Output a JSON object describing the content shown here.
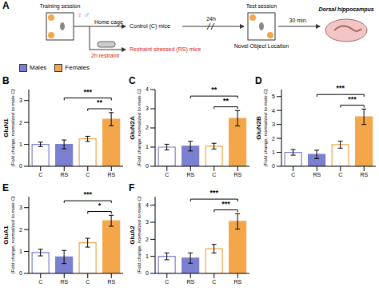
{
  "diagram": {
    "panel_label": "A",
    "training": "Training session",
    "test": "Test session",
    "sexes": [
      "♀",
      "♂"
    ],
    "home_cage": "Home cage",
    "restraint": "2h restraint",
    "control": "Control (C) mice",
    "stressed": "Restraint stressed (RS) mice",
    "delay": "24h",
    "task": "Novel Object Location",
    "wait": "30 min.",
    "tissue": "Dorsal hippocampus"
  },
  "chart_data": [
    {
      "type": "bar",
      "panel_label": "B",
      "ylabel": "GluN1",
      "ylabel_note": "(Fold change, normalized to male C)",
      "legend": "upper left",
      "categories": [
        "C",
        "RS",
        "C",
        "RS"
      ],
      "series": [
        {
          "name": "Males",
          "color": "#7b7fcf",
          "colors": [
            "#ffffff",
            "#7b7fcf",
            null,
            null
          ],
          "values": [
            1.0,
            1.0,
            null,
            null
          ],
          "errors": [
            0.1,
            0.2,
            null,
            null
          ]
        },
        {
          "name": "Females",
          "color": "#f4a64a",
          "colors": [
            null,
            null,
            "#ffffff",
            "#f4a64a"
          ],
          "values": [
            null,
            null,
            1.25,
            2.15
          ],
          "errors": [
            null,
            null,
            0.12,
            0.3
          ]
        }
      ],
      "ylim": [
        0,
        3.5
      ],
      "yticks": [
        0,
        1,
        2,
        3
      ],
      "significance": [
        {
          "from": 2,
          "to": 3,
          "label": "**"
        },
        {
          "from": 1,
          "to": 3,
          "label": "***"
        }
      ]
    },
    {
      "type": "bar",
      "panel_label": "C",
      "ylabel": "GluN2A",
      "ylabel_note": "(Fold change, normalized to male C)",
      "categories": [
        "C",
        "RS",
        "C",
        "RS"
      ],
      "series": [
        {
          "name": "Males",
          "color": "#7b7fcf",
          "colors": [
            "#ffffff",
            "#7b7fcf",
            null,
            null
          ],
          "values": [
            1.0,
            1.05,
            null,
            null
          ],
          "errors": [
            0.15,
            0.25,
            null,
            null
          ]
        },
        {
          "name": "Females",
          "color": "#f4a64a",
          "colors": [
            null,
            null,
            "#ffffff",
            "#f4a64a"
          ],
          "values": [
            null,
            null,
            1.05,
            2.5
          ],
          "errors": [
            null,
            null,
            0.15,
            0.4
          ]
        }
      ],
      "ylim": [
        0,
        4
      ],
      "yticks": [
        0,
        1,
        2,
        3,
        4
      ],
      "significance": [
        {
          "from": 2,
          "to": 3,
          "label": "**"
        },
        {
          "from": 1,
          "to": 3,
          "label": "**"
        }
      ]
    },
    {
      "type": "bar",
      "panel_label": "D",
      "ylabel": "GluN2B",
      "ylabel_note": "(Fold change, normalized to male C)",
      "categories": [
        "C",
        "RS",
        "C",
        "RS"
      ],
      "series": [
        {
          "name": "Males",
          "color": "#7b7fcf",
          "colors": [
            "#ffffff",
            "#7b7fcf",
            null,
            null
          ],
          "values": [
            1.0,
            0.85,
            null,
            null
          ],
          "errors": [
            0.2,
            0.3,
            null,
            null
          ]
        },
        {
          "name": "Females",
          "color": "#f4a64a",
          "colors": [
            null,
            null,
            "#ffffff",
            "#f4a64a"
          ],
          "values": [
            null,
            null,
            1.55,
            3.55
          ],
          "errors": [
            null,
            null,
            0.25,
            0.55
          ]
        }
      ],
      "ylim": [
        0,
        5.5
      ],
      "yticks": [
        0,
        1,
        2,
        3,
        4,
        5
      ],
      "significance": [
        {
          "from": 2,
          "to": 3,
          "label": "***"
        },
        {
          "from": 1,
          "to": 3,
          "label": "***"
        }
      ]
    },
    {
      "type": "bar",
      "panel_label": "E",
      "ylabel": "GluA1",
      "ylabel_note": "(Fold change, normalized to male C)",
      "categories": [
        "C",
        "RS",
        "C",
        "RS"
      ],
      "series": [
        {
          "name": "Males",
          "color": "#7b7fcf",
          "colors": [
            "#ffffff",
            "#7b7fcf",
            null,
            null
          ],
          "values": [
            0.95,
            0.75,
            null,
            null
          ],
          "errors": [
            0.15,
            0.3,
            null,
            null
          ]
        },
        {
          "name": "Females",
          "color": "#f4a64a",
          "colors": [
            null,
            null,
            "#ffffff",
            "#f4a64a"
          ],
          "values": [
            null,
            null,
            1.4,
            2.4
          ],
          "errors": [
            null,
            null,
            0.2,
            0.25
          ]
        }
      ],
      "ylim": [
        0,
        3.5
      ],
      "yticks": [
        0,
        1,
        2,
        3
      ],
      "significance": [
        {
          "from": 2,
          "to": 3,
          "label": "*"
        },
        {
          "from": 1,
          "to": 3,
          "label": "***"
        }
      ]
    },
    {
      "type": "bar",
      "panel_label": "F",
      "ylabel": "GluA2",
      "ylabel_note": "(Fold change, normalized to male C)",
      "categories": [
        "C",
        "RS",
        "C",
        "RS"
      ],
      "series": [
        {
          "name": "Males",
          "color": "#7b7fcf",
          "colors": [
            "#ffffff",
            "#7b7fcf",
            null,
            null
          ],
          "values": [
            1.0,
            0.9,
            null,
            null
          ],
          "errors": [
            0.2,
            0.3,
            null,
            null
          ]
        },
        {
          "name": "Females",
          "color": "#f4a64a",
          "colors": [
            null,
            null,
            "#ffffff",
            "#f4a64a"
          ],
          "values": [
            null,
            null,
            1.45,
            3.05
          ],
          "errors": [
            null,
            null,
            0.25,
            0.45
          ]
        }
      ],
      "ylim": [
        0,
        4.5
      ],
      "yticks": [
        0,
        1,
        2,
        3,
        4
      ],
      "significance": [
        {
          "from": 2,
          "to": 3,
          "label": "***"
        },
        {
          "from": 1,
          "to": 3,
          "label": "***"
        }
      ]
    }
  ]
}
